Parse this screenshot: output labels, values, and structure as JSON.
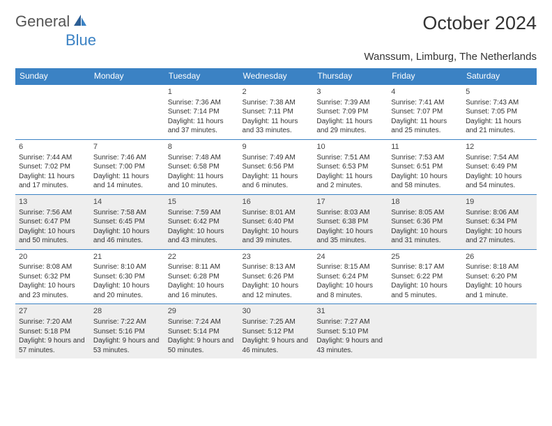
{
  "brand": {
    "part1": "General",
    "part2": "Blue"
  },
  "title": "October 2024",
  "location": "Wanssum, Limburg, The Netherlands",
  "colors": {
    "header_bg": "#3b82c4",
    "header_text": "#ffffff",
    "row_border": "#3b82c4",
    "shade_bg": "#eeeeee",
    "page_bg": "#ffffff",
    "text": "#333333",
    "logo_gray": "#555555",
    "logo_blue": "#3b82c4"
  },
  "typography": {
    "title_fontsize": 27,
    "location_fontsize": 15,
    "dayhead_fontsize": 12,
    "cell_fontsize": 10,
    "font_family": "Arial"
  },
  "dayNames": [
    "Sunday",
    "Monday",
    "Tuesday",
    "Wednesday",
    "Thursday",
    "Friday",
    "Saturday"
  ],
  "weeks": [
    {
      "shaded": false,
      "days": [
        null,
        null,
        {
          "n": "1",
          "sunrise": "Sunrise: 7:36 AM",
          "sunset": "Sunset: 7:14 PM",
          "daylight": "Daylight: 11 hours and 37 minutes."
        },
        {
          "n": "2",
          "sunrise": "Sunrise: 7:38 AM",
          "sunset": "Sunset: 7:11 PM",
          "daylight": "Daylight: 11 hours and 33 minutes."
        },
        {
          "n": "3",
          "sunrise": "Sunrise: 7:39 AM",
          "sunset": "Sunset: 7:09 PM",
          "daylight": "Daylight: 11 hours and 29 minutes."
        },
        {
          "n": "4",
          "sunrise": "Sunrise: 7:41 AM",
          "sunset": "Sunset: 7:07 PM",
          "daylight": "Daylight: 11 hours and 25 minutes."
        },
        {
          "n": "5",
          "sunrise": "Sunrise: 7:43 AM",
          "sunset": "Sunset: 7:05 PM",
          "daylight": "Daylight: 11 hours and 21 minutes."
        }
      ]
    },
    {
      "shaded": false,
      "days": [
        {
          "n": "6",
          "sunrise": "Sunrise: 7:44 AM",
          "sunset": "Sunset: 7:02 PM",
          "daylight": "Daylight: 11 hours and 17 minutes."
        },
        {
          "n": "7",
          "sunrise": "Sunrise: 7:46 AM",
          "sunset": "Sunset: 7:00 PM",
          "daylight": "Daylight: 11 hours and 14 minutes."
        },
        {
          "n": "8",
          "sunrise": "Sunrise: 7:48 AM",
          "sunset": "Sunset: 6:58 PM",
          "daylight": "Daylight: 11 hours and 10 minutes."
        },
        {
          "n": "9",
          "sunrise": "Sunrise: 7:49 AM",
          "sunset": "Sunset: 6:56 PM",
          "daylight": "Daylight: 11 hours and 6 minutes."
        },
        {
          "n": "10",
          "sunrise": "Sunrise: 7:51 AM",
          "sunset": "Sunset: 6:53 PM",
          "daylight": "Daylight: 11 hours and 2 minutes."
        },
        {
          "n": "11",
          "sunrise": "Sunrise: 7:53 AM",
          "sunset": "Sunset: 6:51 PM",
          "daylight": "Daylight: 10 hours and 58 minutes."
        },
        {
          "n": "12",
          "sunrise": "Sunrise: 7:54 AM",
          "sunset": "Sunset: 6:49 PM",
          "daylight": "Daylight: 10 hours and 54 minutes."
        }
      ]
    },
    {
      "shaded": true,
      "days": [
        {
          "n": "13",
          "sunrise": "Sunrise: 7:56 AM",
          "sunset": "Sunset: 6:47 PM",
          "daylight": "Daylight: 10 hours and 50 minutes."
        },
        {
          "n": "14",
          "sunrise": "Sunrise: 7:58 AM",
          "sunset": "Sunset: 6:45 PM",
          "daylight": "Daylight: 10 hours and 46 minutes."
        },
        {
          "n": "15",
          "sunrise": "Sunrise: 7:59 AM",
          "sunset": "Sunset: 6:42 PM",
          "daylight": "Daylight: 10 hours and 43 minutes."
        },
        {
          "n": "16",
          "sunrise": "Sunrise: 8:01 AM",
          "sunset": "Sunset: 6:40 PM",
          "daylight": "Daylight: 10 hours and 39 minutes."
        },
        {
          "n": "17",
          "sunrise": "Sunrise: 8:03 AM",
          "sunset": "Sunset: 6:38 PM",
          "daylight": "Daylight: 10 hours and 35 minutes."
        },
        {
          "n": "18",
          "sunrise": "Sunrise: 8:05 AM",
          "sunset": "Sunset: 6:36 PM",
          "daylight": "Daylight: 10 hours and 31 minutes."
        },
        {
          "n": "19",
          "sunrise": "Sunrise: 8:06 AM",
          "sunset": "Sunset: 6:34 PM",
          "daylight": "Daylight: 10 hours and 27 minutes."
        }
      ]
    },
    {
      "shaded": false,
      "days": [
        {
          "n": "20",
          "sunrise": "Sunrise: 8:08 AM",
          "sunset": "Sunset: 6:32 PM",
          "daylight": "Daylight: 10 hours and 23 minutes."
        },
        {
          "n": "21",
          "sunrise": "Sunrise: 8:10 AM",
          "sunset": "Sunset: 6:30 PM",
          "daylight": "Daylight: 10 hours and 20 minutes."
        },
        {
          "n": "22",
          "sunrise": "Sunrise: 8:11 AM",
          "sunset": "Sunset: 6:28 PM",
          "daylight": "Daylight: 10 hours and 16 minutes."
        },
        {
          "n": "23",
          "sunrise": "Sunrise: 8:13 AM",
          "sunset": "Sunset: 6:26 PM",
          "daylight": "Daylight: 10 hours and 12 minutes."
        },
        {
          "n": "24",
          "sunrise": "Sunrise: 8:15 AM",
          "sunset": "Sunset: 6:24 PM",
          "daylight": "Daylight: 10 hours and 8 minutes."
        },
        {
          "n": "25",
          "sunrise": "Sunrise: 8:17 AM",
          "sunset": "Sunset: 6:22 PM",
          "daylight": "Daylight: 10 hours and 5 minutes."
        },
        {
          "n": "26",
          "sunrise": "Sunrise: 8:18 AM",
          "sunset": "Sunset: 6:20 PM",
          "daylight": "Daylight: 10 hours and 1 minute."
        }
      ]
    },
    {
      "shaded": true,
      "days": [
        {
          "n": "27",
          "sunrise": "Sunrise: 7:20 AM",
          "sunset": "Sunset: 5:18 PM",
          "daylight": "Daylight: 9 hours and 57 minutes."
        },
        {
          "n": "28",
          "sunrise": "Sunrise: 7:22 AM",
          "sunset": "Sunset: 5:16 PM",
          "daylight": "Daylight: 9 hours and 53 minutes."
        },
        {
          "n": "29",
          "sunrise": "Sunrise: 7:24 AM",
          "sunset": "Sunset: 5:14 PM",
          "daylight": "Daylight: 9 hours and 50 minutes."
        },
        {
          "n": "30",
          "sunrise": "Sunrise: 7:25 AM",
          "sunset": "Sunset: 5:12 PM",
          "daylight": "Daylight: 9 hours and 46 minutes."
        },
        {
          "n": "31",
          "sunrise": "Sunrise: 7:27 AM",
          "sunset": "Sunset: 5:10 PM",
          "daylight": "Daylight: 9 hours and 43 minutes."
        },
        null,
        null
      ]
    }
  ]
}
